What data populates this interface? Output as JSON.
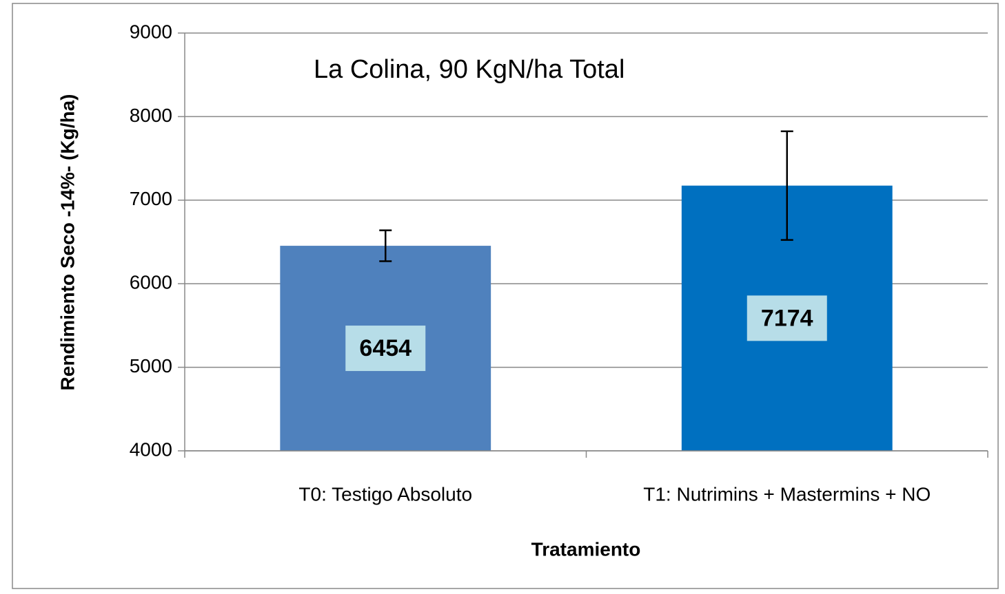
{
  "chart_data": {
    "type": "bar",
    "annotation": "La Colina, 90 KgN/ha Total",
    "x_label": "Tratamiento",
    "y_label": "Rendimiento Seco -14%- (Kg/ha)",
    "categories": [
      "T0: Testigo Absoluto",
      "T1: Nutrimins + Mastermins + NO"
    ],
    "values": [
      6454,
      7174
    ],
    "errors": [
      185,
      650
    ],
    "colors": [
      "#4f81bd",
      "#0070c0"
    ],
    "label_box_color": "#b7dde8",
    "ylim": [
      4000,
      9000
    ],
    "yticks": [
      4000,
      5000,
      6000,
      7000,
      8000,
      9000
    ],
    "grid": true
  }
}
